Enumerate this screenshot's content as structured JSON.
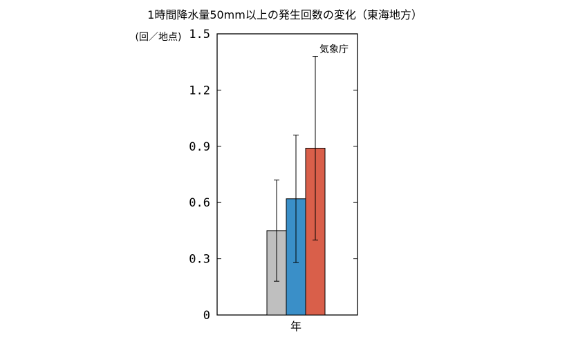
{
  "chart_data": {
    "type": "bar",
    "title": "1時間降水量50mm以上の発生回数の変化（東海地方）",
    "ylabel": "(回／地点)",
    "xlabel": "年",
    "annotation": "気象庁",
    "ylim": [
      0,
      1.5
    ],
    "yticks": [
      "0",
      "0.3",
      "0.6",
      "0.9",
      "1.2",
      "1.5"
    ],
    "ytick_values": [
      0,
      0.3,
      0.6,
      0.9,
      1.2,
      1.5
    ],
    "grid": false,
    "series": [
      {
        "value": 0.45,
        "err_low": 0.18,
        "err_high": 0.72,
        "color": "#bfbfbf"
      },
      {
        "value": 0.62,
        "err_low": 0.28,
        "err_high": 0.96,
        "color": "#3a8fc8"
      },
      {
        "value": 0.89,
        "err_low": 0.4,
        "err_high": 1.38,
        "color": "#d95f4a"
      }
    ]
  }
}
